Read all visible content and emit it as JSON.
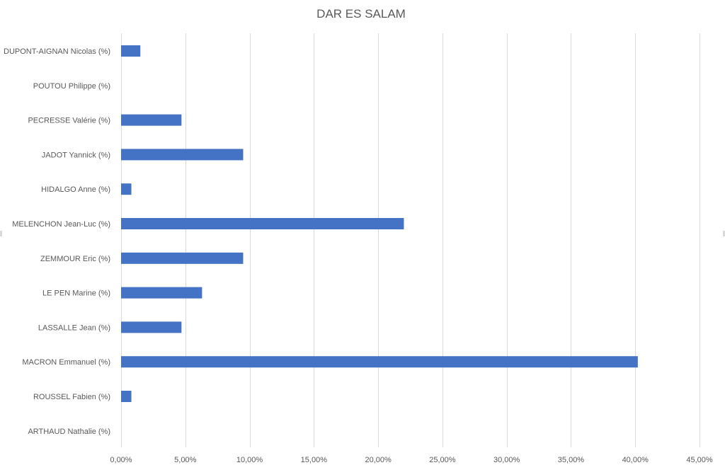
{
  "chart_data": {
    "type": "bar",
    "orientation": "horizontal",
    "title": "DAR ES SALAM",
    "xlabel": "",
    "ylabel": "",
    "categories": [
      "DUPONT-AIGNAN Nicolas (%)",
      "POUTOU Philippe (%)",
      "PECRESSE Valérie (%)",
      "JADOT Yannick (%)",
      "HIDALGO Anne (%)",
      "MELENCHON Jean-Luc (%)",
      "ZEMMOUR Eric (%)",
      "LE PEN Marine (%)",
      "LASSALLE Jean (%)",
      "MACRON Emmanuel (%)",
      "ROUSSEL Fabien (%)",
      "ARTHAUD Nathalie (%)"
    ],
    "values": [
      1.5,
      0,
      4.7,
      9.5,
      0.8,
      22.0,
      9.5,
      6.3,
      4.7,
      40.2,
      0.8,
      0
    ],
    "xlim": [
      0,
      45
    ],
    "xticks": [
      0,
      5,
      10,
      15,
      20,
      25,
      30,
      35,
      40,
      45
    ],
    "xtick_labels": [
      "0,00%",
      "5,00%",
      "10,00%",
      "15,00%",
      "20,00%",
      "25,00%",
      "30,00%",
      "35,00%",
      "40,00%",
      "45,00%"
    ],
    "grid": "vertical",
    "legend": "none",
    "bar_color": "#4472c4",
    "grid_color": "#d9d9d9",
    "text_color": "#595959"
  }
}
